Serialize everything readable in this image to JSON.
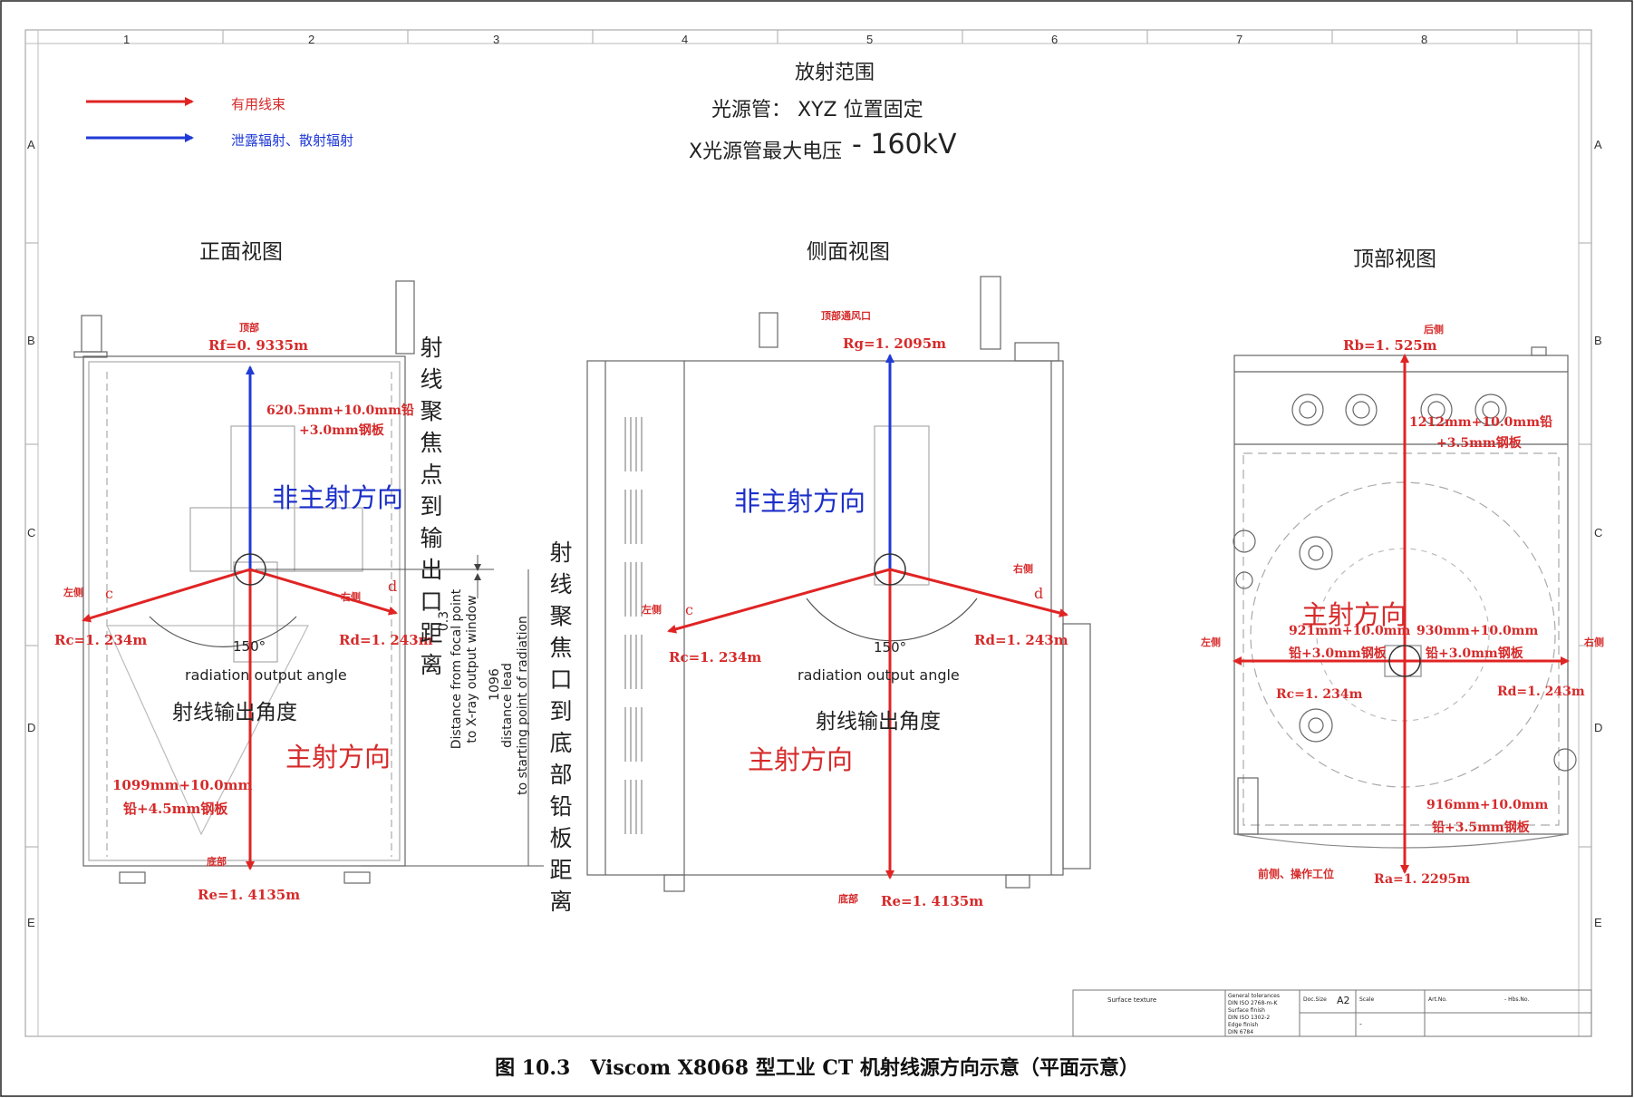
{
  "colors": {
    "primary_beam": "#e02424",
    "leakage": "#1f3ad6",
    "equipment_line": "#666666"
  },
  "legend": {
    "useful_beam": "有用线束",
    "leakage_scatter": "泄露辐射、散射辐射"
  },
  "header": {
    "title": "放射范围",
    "tube": "光源管： XYZ 位置固定",
    "voltage_prefix": "X光源管最大电压",
    "voltage_value": "- 160kV"
  },
  "grid": {
    "columns": [
      "1",
      "2",
      "3",
      "4",
      "5",
      "6",
      "7",
      "8"
    ],
    "rows": [
      "A",
      "B",
      "C",
      "D",
      "E"
    ]
  },
  "front_view": {
    "title": "正面视图",
    "top": "顶部",
    "rf": "Rf=0. 9335m",
    "shield_top_1": "620.5mm+10.0mm铅",
    "shield_top_2": "+3.0mm钢板",
    "non_main": "非主射方向",
    "left": "左侧",
    "c": "c",
    "d": "d",
    "right": "右侧",
    "rc": "Rc=1. 234m",
    "rd": "Rd=1. 243m",
    "angle": "150°",
    "angle_en": "radiation output angle",
    "angle_cn": "射线输出角度",
    "main": "主射方向",
    "shield_bottom_1": "1099mm+10.0mm",
    "shield_bottom_2": "铅+4.5mm钢板",
    "bottom": "底部",
    "re": "Re=1. 4135m",
    "focus_to_window_cn": "射线聚焦点到输出口距离",
    "dim_03": "0.3",
    "dim_03_en_1": "Distance from focal point",
    "dim_03_en_2": "to X-ray output window",
    "dim_1096": "1096",
    "dim_1096_en_1": "distance lead",
    "dim_1096_en_2": "to starting point of radiation",
    "focus_to_bottom_cn": "射线聚焦口到底部铅板距离"
  },
  "side_view": {
    "title": "侧面视图",
    "top_vent": "顶部通风口",
    "rg": "Rg=1. 2095m",
    "non_main": "非主射方向",
    "right": "右侧",
    "left": "左侧",
    "c": "c",
    "d": "d",
    "rc": "Rc=1. 234m",
    "rd": "Rd=1. 243m",
    "angle": "150°",
    "angle_en": "radiation output angle",
    "angle_cn": "射线输出角度",
    "main": "主射方向",
    "bottom": "底部",
    "re": "Re=1. 4135m"
  },
  "top_view": {
    "title": "顶部视图",
    "back": "后侧",
    "rb": "Rb=1. 525m",
    "shield_back_1": "1212mm+10.0mm铅",
    "shield_back_2": "+3.5mm钢板",
    "main": "主射方向",
    "left": "左侧",
    "right": "右侧",
    "shield_left_1": "921mm+10.0mm",
    "shield_left_2": "铅+3.0mm钢板",
    "shield_right_1": "930mm+10.0mm",
    "shield_right_2": "铅+3.0mm钢板",
    "rc": "Rc=1. 234m",
    "rd": "Rd=1. 243m",
    "shield_front_1": "916mm+10.0mm",
    "shield_front_2": "铅+3.5mm钢板",
    "front": "前侧、操作工位",
    "ra": "Ra=1. 2295m"
  },
  "title_block": {
    "surface_texture": "Surface texture",
    "tolerances": "General tolerances",
    "tol_std": "DIN ISO 2768-m-K",
    "surface_finish": "Surface finish",
    "sf_std": "DIN ISO 1302-2",
    "edge_finish": "Edge finish",
    "ef_std": "DIN 6784",
    "doc_size": "Doc.Size",
    "size": "A2",
    "scale": "Scale",
    "art_no": "Art.No.",
    "hbs_no": "- Hbs.No.",
    "dash": "-"
  },
  "caption": "图 10.3　Viscom X8068 型工业 CT 机射线源方向示意（平面示意）"
}
